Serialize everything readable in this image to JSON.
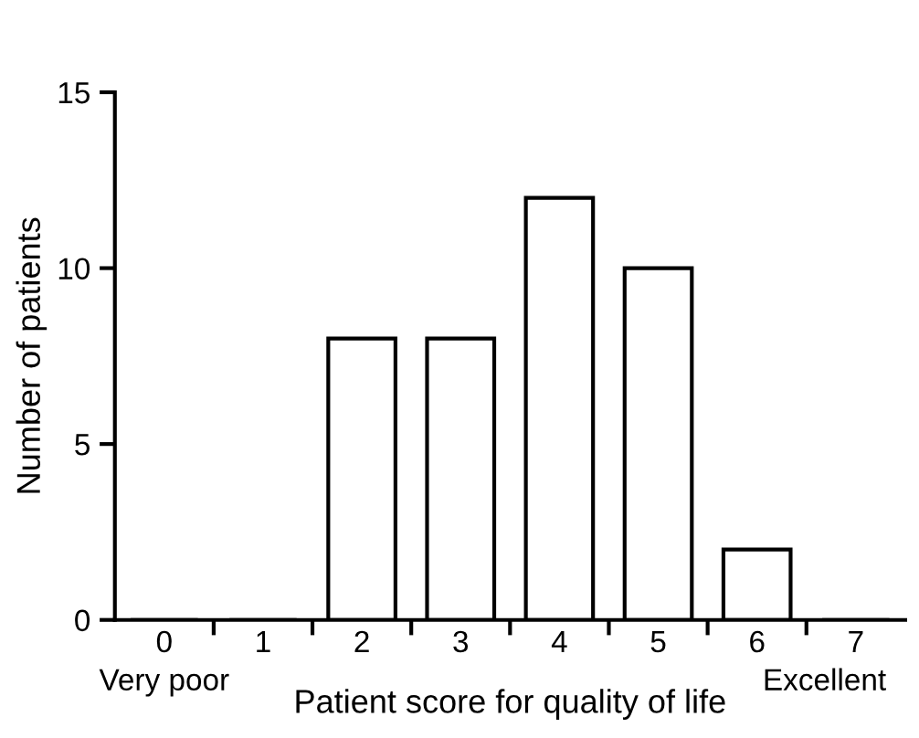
{
  "chart_data": {
    "type": "bar",
    "xlabel": "Patient score for quality of life",
    "ylabel": "Number of patients",
    "categories": [
      "0",
      "1",
      "2",
      "3",
      "4",
      "5",
      "6",
      "7"
    ],
    "values": [
      0,
      0,
      8,
      8,
      12,
      10,
      2,
      0
    ],
    "color": "#ffffff",
    "ylim": [
      0,
      15
    ],
    "yticks": [
      0,
      5,
      10,
      15
    ],
    "grid": false,
    "annotations": [
      "Very poor",
      "Excellent"
    ]
  }
}
